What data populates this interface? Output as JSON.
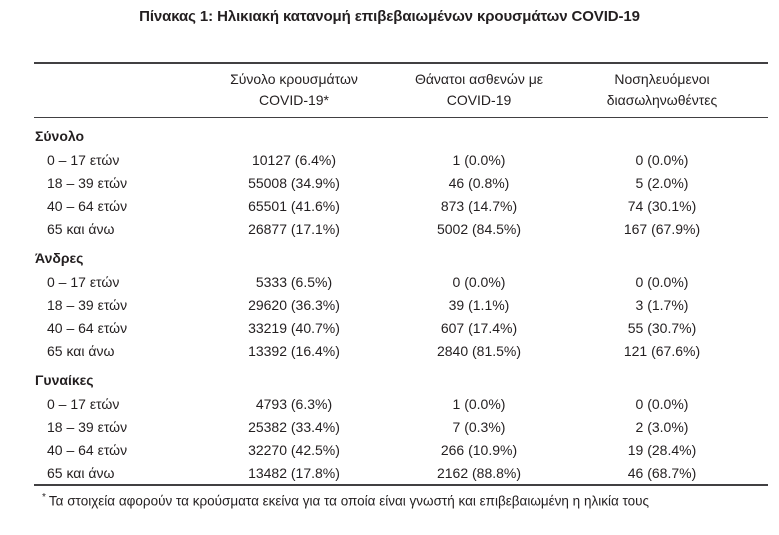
{
  "title": "Πίνακας 1: Ηλικιακή κατανομή επιβεβαιωμένων κρουσμάτων COVID-19",
  "table": {
    "columns": [
      {
        "line1": "Σύνολο κρουσμάτων",
        "line2": "COVID-19*"
      },
      {
        "line1": "Θάνατοι ασθενών με",
        "line2": "COVID-19"
      },
      {
        "line1": "Νοσηλευόμενοι",
        "line2": "διασωληνωθέντες"
      }
    ],
    "sections": [
      {
        "name": "Σύνολο",
        "rows": [
          {
            "label": "0 – 17 ετών",
            "cases": "10127 (6.4%)",
            "deaths": "1 (0.0%)",
            "intubated": "0 (0.0%)"
          },
          {
            "label": "18 – 39 ετών",
            "cases": "55008 (34.9%)",
            "deaths": "46 (0.8%)",
            "intubated": "5 (2.0%)"
          },
          {
            "label": "40 – 64 ετών",
            "cases": "65501 (41.6%)",
            "deaths": "873 (14.7%)",
            "intubated": "74 (30.1%)"
          },
          {
            "label": "65 και άνω",
            "cases": "26877 (17.1%)",
            "deaths": "5002 (84.5%)",
            "intubated": "167 (67.9%)"
          }
        ]
      },
      {
        "name": "Άνδρες",
        "rows": [
          {
            "label": "0 – 17 ετών",
            "cases": "5333 (6.5%)",
            "deaths": "0 (0.0%)",
            "intubated": "0 (0.0%)"
          },
          {
            "label": "18 – 39 ετών",
            "cases": "29620 (36.3%)",
            "deaths": "39 (1.1%)",
            "intubated": "3 (1.7%)"
          },
          {
            "label": "40 – 64 ετών",
            "cases": "33219 (40.7%)",
            "deaths": "607 (17.4%)",
            "intubated": "55 (30.7%)"
          },
          {
            "label": "65 και άνω",
            "cases": "13392 (16.4%)",
            "deaths": "2840 (81.5%)",
            "intubated": "121 (67.6%)"
          }
        ]
      },
      {
        "name": "Γυναίκες",
        "rows": [
          {
            "label": "0 – 17 ετών",
            "cases": "4793 (6.3%)",
            "deaths": "1 (0.0%)",
            "intubated": "0 (0.0%)"
          },
          {
            "label": "18 – 39 ετών",
            "cases": "25382 (33.4%)",
            "deaths": "7 (0.3%)",
            "intubated": "2 (3.0%)"
          },
          {
            "label": "40 – 64 ετών",
            "cases": "32270 (42.5%)",
            "deaths": "266 (10.9%)",
            "intubated": "19 (28.4%)"
          },
          {
            "label": "65 και άνω",
            "cases": "13482 (17.8%)",
            "deaths": "2162 (88.8%)",
            "intubated": "46 (68.7%)"
          }
        ]
      }
    ]
  },
  "footnote": {
    "marker": "*",
    "text": "Τα στοιχεία αφορούν τα κρούσματα εκείνα για τα οποία είναι γνωστή και επιβεβαιωμένη η ηλικία τους"
  },
  "colors": {
    "text": "#231f20",
    "rule": "#414042",
    "background": "#ffffff"
  }
}
